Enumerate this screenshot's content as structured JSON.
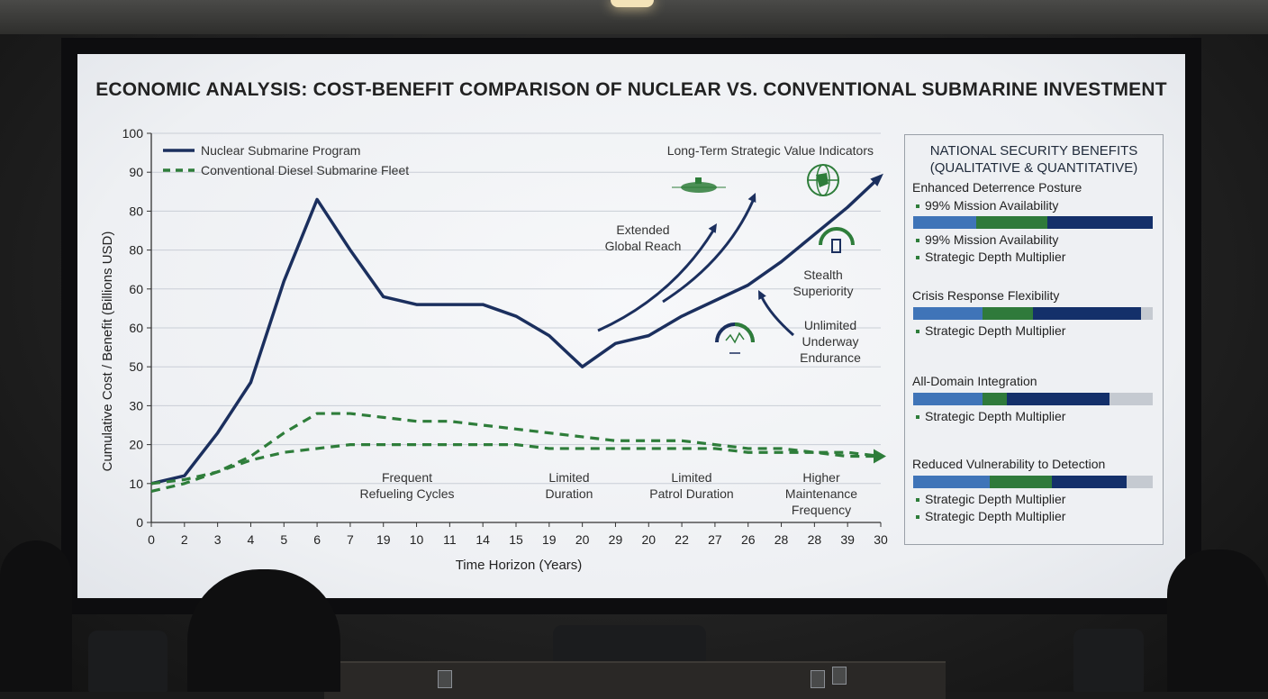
{
  "title": "ECONOMIC ANALYSIS: COST-BENEFIT COMPARISON OF NUCLEAR VS. CONVENTIONAL SUBMARINE INVESTMENT",
  "chart_data": {
    "type": "line",
    "title": "ECONOMIC ANALYSIS: COST-BENEFIT COMPARISON OF NUCLEAR VS. CONVENTIONAL SUBMARINE INVESTMENT",
    "xlabel": "Time Horizon (Years)",
    "ylabel": "Cumulative Cost / Benefit (Billions USD)",
    "categories": [
      "0",
      "2",
      "3",
      "4",
      "5",
      "6",
      "7",
      "19",
      "10",
      "11",
      "14",
      "15",
      "19",
      "20",
      "29",
      "20",
      "22",
      "27",
      "26",
      "28",
      "28",
      "39",
      "30"
    ],
    "y_tick_labels": [
      "0",
      "10",
      "20",
      "30",
      "50",
      "60",
      "60",
      "80",
      "80",
      "90",
      "100"
    ],
    "ylim": [
      0,
      100
    ],
    "grid": true,
    "legend_position": "top-left",
    "series": [
      {
        "name": "Nuclear Submarine Program",
        "color": "#1b2f5e",
        "style": "solid",
        "values": [
          10,
          12,
          23,
          36,
          62,
          83,
          70,
          58,
          56,
          56,
          56,
          53,
          48,
          40,
          46,
          48,
          53,
          57,
          61,
          67,
          74,
          81,
          89
        ]
      },
      {
        "name": "Conventional Diesel Submarine Fleet",
        "color": "#2e7d3a",
        "style": "dashed",
        "values": [
          8,
          10,
          13,
          17,
          23,
          28,
          28,
          27,
          26,
          26,
          25,
          24,
          23,
          22,
          21,
          21,
          21,
          20,
          19,
          19,
          18,
          18,
          17
        ]
      },
      {
        "name": "",
        "color": "#2e7d3a",
        "style": "dashed",
        "values": [
          10,
          11,
          13,
          16,
          18,
          19,
          20,
          20,
          20,
          20,
          20,
          20,
          19,
          19,
          19,
          19,
          19,
          19,
          18,
          18,
          18,
          17,
          17
        ]
      }
    ],
    "annotations": [
      {
        "lines": [
          "Frequent",
          "Refueling Cycles"
        ]
      },
      {
        "lines": [
          "Limited",
          "Duration"
        ]
      },
      {
        "lines": [
          "Limited",
          "Patrol Duration"
        ]
      },
      {
        "lines": [
          "Higher",
          "Maintenance",
          "Frequency"
        ]
      },
      {
        "lines": [
          "Extended",
          "Global Reach"
        ]
      },
      {
        "lines": [
          "Stealth",
          "Superiority"
        ]
      },
      {
        "lines": [
          "Unlimited",
          "Underway",
          "Endurance"
        ]
      },
      {
        "lines": [
          "Long-Term Strategic Value Indicators"
        ]
      }
    ]
  },
  "benefits_panel": {
    "title_line1": "NATIONAL SECURITY BENEFITS",
    "title_line2": "(QUALITATIVE & QUANTITATIVE)",
    "colors": {
      "light_blue": "#3f74b8",
      "green": "#2f7a3b",
      "navy": "#14306a",
      "gray": "#c5cad1"
    },
    "items": [
      {
        "title": "Enhanced Deterrence Posture",
        "subs": [
          "99% Mission Availability",
          "99% Mission Availability",
          "Strategic Depth Multiplier"
        ],
        "segments": [
          27,
          30,
          45
        ]
      },
      {
        "title": "Crisis Response Flexibility",
        "subs": [
          "Strategic Depth Multiplier"
        ],
        "segments": [
          29,
          21,
          45
        ]
      },
      {
        "title": "All-Domain Integration",
        "subs": [
          "Strategic Depth Multiplier"
        ],
        "segments": [
          29,
          10,
          43
        ]
      },
      {
        "title": "Reduced Vulnerability to Detection",
        "subs": [
          "Strategic Depth Multiplier",
          "Strategic Depth Multiplier"
        ],
        "segments": [
          32,
          26,
          31
        ]
      }
    ]
  }
}
